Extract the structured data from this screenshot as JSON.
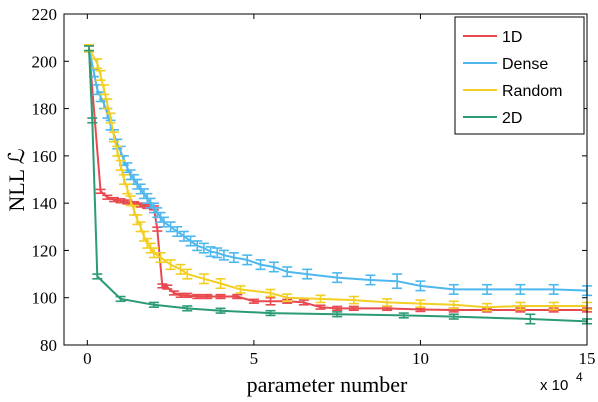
{
  "chart_data": {
    "type": "line",
    "xlabel": "parameter number",
    "ylabel": "NLL ℒ",
    "x_multiplier_label": "x 10",
    "x_multiplier_exp": "4",
    "xlim": [
      -0.7,
      15
    ],
    "ylim": [
      80,
      220
    ],
    "xticks": [
      0,
      5,
      10,
      15
    ],
    "yticks": [
      80,
      100,
      120,
      140,
      160,
      180,
      200,
      220
    ],
    "grid": false,
    "legend_position": "top-right",
    "series": [
      {
        "name": "1D",
        "color": "#e8494f",
        "points": [
          [
            0.05,
            205.5,
            1.0
          ],
          [
            0.4,
            145,
            0.8
          ],
          [
            0.6,
            142.5,
            0.8
          ],
          [
            0.8,
            141.5,
            0.8
          ],
          [
            1.0,
            141,
            0.8
          ],
          [
            1.2,
            140.5,
            0.8
          ],
          [
            1.4,
            139.8,
            0.8
          ],
          [
            1.6,
            139.2,
            0.8
          ],
          [
            1.8,
            138.6,
            0.8
          ],
          [
            2.0,
            138,
            0.8
          ],
          [
            2.1,
            129,
            0.8
          ],
          [
            2.25,
            105,
            0.8
          ],
          [
            2.4,
            104.5,
            0.8
          ],
          [
            2.6,
            102,
            0.8
          ],
          [
            2.8,
            101,
            0.8
          ],
          [
            3.0,
            101,
            0.8
          ],
          [
            3.3,
            100.5,
            0.8
          ],
          [
            3.6,
            100.5,
            0.8
          ],
          [
            4.0,
            100.5,
            0.8
          ],
          [
            4.5,
            100.5,
            0.8
          ],
          [
            5.0,
            98.5,
            0.8
          ],
          [
            5.5,
            98.5,
            1.5
          ],
          [
            6.0,
            98.5,
            0.8
          ],
          [
            6.5,
            98,
            1.0
          ],
          [
            7.0,
            96,
            0.8
          ],
          [
            7.5,
            95.5,
            0.8
          ],
          [
            8.0,
            95.5,
            0.8
          ],
          [
            9.0,
            95.5,
            0.8
          ],
          [
            10.0,
            95,
            0.8
          ],
          [
            11.0,
            94.8,
            0.8
          ],
          [
            12.0,
            94.8,
            0.8
          ],
          [
            13.0,
            94.8,
            0.8
          ],
          [
            14.0,
            94.8,
            0.8
          ],
          [
            15.0,
            94.8,
            0.8
          ]
        ]
      },
      {
        "name": "Dense",
        "color": "#4eb8ee",
        "points": [
          [
            0.05,
            205.5,
            1.5
          ],
          [
            0.2,
            195,
            1.5
          ],
          [
            0.3,
            188,
            2
          ],
          [
            0.4,
            185,
            2
          ],
          [
            0.5,
            182,
            2
          ],
          [
            0.6,
            178,
            2
          ],
          [
            0.7,
            173,
            2
          ],
          [
            0.8,
            169,
            2
          ],
          [
            0.9,
            165,
            2
          ],
          [
            1.0,
            162,
            2
          ],
          [
            1.1,
            158,
            2
          ],
          [
            1.2,
            155,
            2
          ],
          [
            1.3,
            152,
            2
          ],
          [
            1.4,
            150,
            2
          ],
          [
            1.5,
            148,
            2
          ],
          [
            1.6,
            146,
            2
          ],
          [
            1.7,
            144,
            2
          ],
          [
            1.8,
            142,
            2
          ],
          [
            1.9,
            140,
            2
          ],
          [
            2.0,
            138,
            2
          ],
          [
            2.1,
            136,
            2
          ],
          [
            2.2,
            134,
            2
          ],
          [
            2.3,
            132,
            2
          ],
          [
            2.5,
            130,
            2
          ],
          [
            2.7,
            128,
            2
          ],
          [
            2.9,
            126,
            2
          ],
          [
            3.1,
            124,
            2
          ],
          [
            3.3,
            122,
            2
          ],
          [
            3.5,
            121,
            2
          ],
          [
            3.7,
            119.5,
            2
          ],
          [
            3.9,
            119,
            2
          ],
          [
            4.1,
            118,
            2
          ],
          [
            4.4,
            117,
            2
          ],
          [
            4.8,
            116,
            2
          ],
          [
            5.2,
            114,
            2
          ],
          [
            5.6,
            113,
            2
          ],
          [
            6.0,
            111,
            2
          ],
          [
            6.6,
            110,
            2
          ],
          [
            7.5,
            108.5,
            2
          ],
          [
            8.5,
            107.5,
            2
          ],
          [
            9.3,
            107,
            3
          ],
          [
            10.0,
            105,
            2
          ],
          [
            11.0,
            103.5,
            2
          ],
          [
            12.0,
            103.5,
            2
          ],
          [
            13.0,
            103.5,
            2
          ],
          [
            14.0,
            103.5,
            2
          ],
          [
            15.0,
            103,
            2
          ]
        ]
      },
      {
        "name": "Random",
        "color": "#f2cf22",
        "points": [
          [
            0.05,
            205.5,
            1.5
          ],
          [
            0.3,
            199,
            2
          ],
          [
            0.4,
            194,
            2
          ],
          [
            0.5,
            188,
            2
          ],
          [
            0.6,
            182,
            2
          ],
          [
            0.7,
            176,
            2
          ],
          [
            0.8,
            168,
            2
          ],
          [
            0.9,
            162,
            2
          ],
          [
            1.0,
            156,
            2
          ],
          [
            1.1,
            150,
            2
          ],
          [
            1.2,
            146,
            2
          ],
          [
            1.3,
            141,
            2
          ],
          [
            1.4,
            137,
            2
          ],
          [
            1.5,
            133,
            2
          ],
          [
            1.6,
            130,
            2
          ],
          [
            1.7,
            126,
            2
          ],
          [
            1.8,
            123,
            2
          ],
          [
            1.9,
            121,
            2
          ],
          [
            2.0,
            119,
            2
          ],
          [
            2.2,
            117,
            2
          ],
          [
            2.5,
            114,
            2
          ],
          [
            2.8,
            112,
            2
          ],
          [
            3.0,
            110,
            2
          ],
          [
            3.5,
            108,
            2
          ],
          [
            4.0,
            106,
            2
          ],
          [
            4.6,
            103.5,
            1.5
          ],
          [
            5.5,
            102,
            1.5
          ],
          [
            6.0,
            100,
            1.5
          ],
          [
            7.0,
            99.5,
            1.5
          ],
          [
            8.0,
            99,
            1.5
          ],
          [
            9.0,
            98,
            1.5
          ],
          [
            10.0,
            97.5,
            1.5
          ],
          [
            11.0,
            97,
            1.5
          ],
          [
            12.0,
            96,
            1.5
          ],
          [
            13.0,
            96.5,
            1.5
          ],
          [
            14.0,
            96.5,
            1.5
          ],
          [
            15.0,
            96.5,
            1.5
          ]
        ]
      },
      {
        "name": "2D",
        "color": "#2b9b74",
        "points": [
          [
            0.05,
            205.5,
            1.0
          ],
          [
            0.15,
            175,
            1.0
          ],
          [
            0.3,
            109,
            1.0
          ],
          [
            1.0,
            99.5,
            1.0
          ],
          [
            2.0,
            97,
            1.0
          ],
          [
            3.0,
            95.5,
            1.0
          ],
          [
            4.0,
            94.5,
            1.0
          ],
          [
            5.5,
            93.5,
            1.0
          ],
          [
            7.5,
            93,
            1.0
          ],
          [
            9.5,
            92.5,
            1.0
          ],
          [
            11.0,
            92,
            1.0
          ],
          [
            13.3,
            91,
            2
          ],
          [
            15.0,
            90,
            1.0
          ]
        ]
      }
    ]
  }
}
